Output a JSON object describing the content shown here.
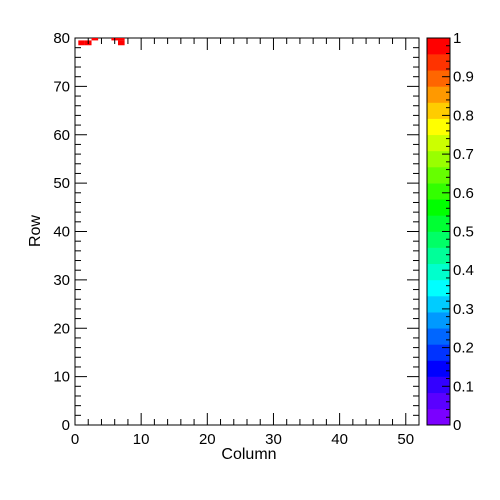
{
  "chart_data": {
    "type": "heatmap",
    "title": "",
    "xlabel": "Column",
    "ylabel": "Row",
    "xlim": [
      0,
      52
    ],
    "ylim": [
      0,
      80
    ],
    "x_ticks": [
      0,
      10,
      20,
      30,
      40,
      50
    ],
    "y_ticks": [
      0,
      10,
      20,
      30,
      40,
      50,
      60,
      70,
      80
    ],
    "z_range": [
      0,
      1
    ],
    "colorbar_ticks": [
      0,
      0.1,
      0.2,
      0.3,
      0.4,
      0.5,
      0.6,
      0.7,
      0.8,
      0.9,
      1
    ],
    "colorbar_tick_labels": [
      "0",
      "0.1",
      "0.2",
      "0.3",
      "0.4",
      "0.5",
      "0.6",
      "0.7",
      "0.8",
      "0.9",
      "1"
    ],
    "palette": [
      "#7b00ff",
      "#5a00ff",
      "#3300ff",
      "#0000ff",
      "#0033ff",
      "#0066ff",
      "#0099ff",
      "#00ccff",
      "#00ffff",
      "#00ffcc",
      "#00ff99",
      "#00ff66",
      "#00ff33",
      "#00ff00",
      "#33ff00",
      "#66ff00",
      "#99ff00",
      "#ccff00",
      "#ffff00",
      "#ffcc00",
      "#ff9900",
      "#ff6600",
      "#ff3300",
      "#ff0000"
    ],
    "cells": [
      {
        "column": 1,
        "row": 79,
        "value": 1
      },
      {
        "column": 2,
        "row": 79,
        "value": 1
      },
      {
        "column": 3,
        "row": 80,
        "value": 1
      },
      {
        "column": 6,
        "row": 80,
        "value": 1
      },
      {
        "column": 7,
        "row": 79,
        "value": 1
      },
      {
        "column": 7,
        "row": 80,
        "value": 1
      }
    ]
  }
}
